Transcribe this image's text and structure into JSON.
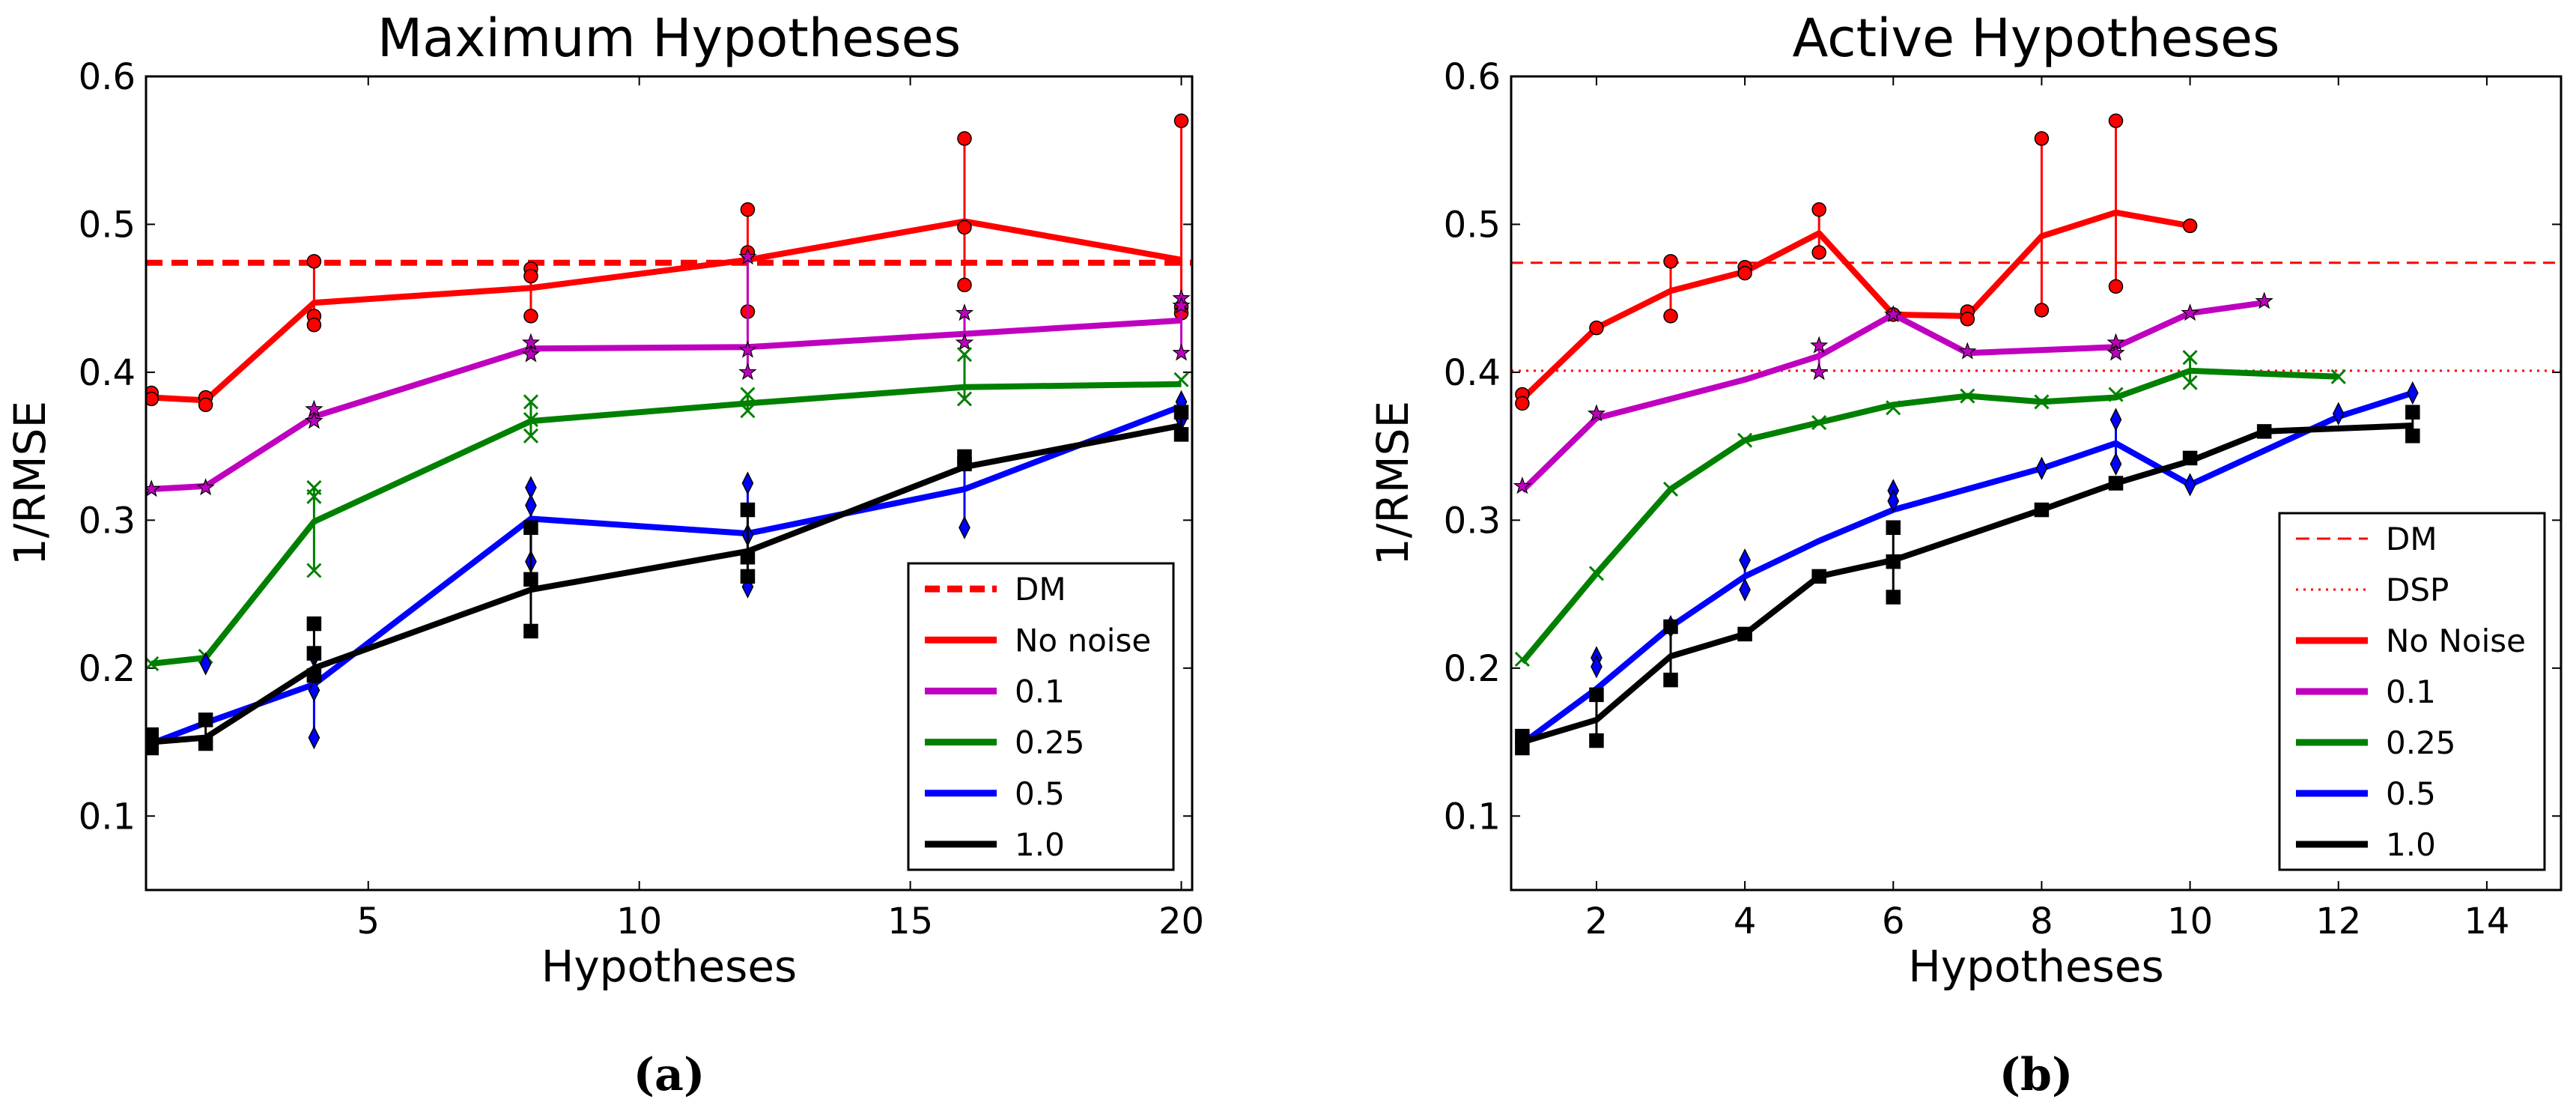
{
  "colors": {
    "red": "#ff0000",
    "magenta": "#bf00bf",
    "green": "#008000",
    "blue": "#0000ff",
    "black": "#000000"
  },
  "chart_data": [
    {
      "type": "line",
      "title": "Maximum Hypotheses",
      "xlabel": "Hypotheses",
      "ylabel": "1/RMSE",
      "caption": "(a)",
      "xlim": [
        0.9,
        20.2
      ],
      "ylim": [
        0.05,
        0.6
      ],
      "xticks": [
        5,
        10,
        15,
        20
      ],
      "xtick_labels": [
        "5",
        "10",
        "15",
        "20"
      ],
      "yticks": [
        0.1,
        0.2,
        0.3,
        0.4,
        0.5,
        0.6
      ],
      "ytick_labels": [
        "0.1",
        "0.2",
        "0.3",
        "0.4",
        "0.5",
        "0.6"
      ],
      "legend_position": "lower-right",
      "reference_lines": [
        {
          "name": "DM",
          "y": 0.474,
          "color": "#ff0000",
          "style": "dashed"
        }
      ],
      "legend": [
        {
          "label": "DM",
          "color": "#ff0000",
          "style": "dashed"
        },
        {
          "label": "No noise",
          "color": "#ff0000",
          "style": "solid"
        },
        {
          "label": "0.1",
          "color": "#bf00bf",
          "style": "solid"
        },
        {
          "label": "0.25",
          "color": "#008000",
          "style": "solid"
        },
        {
          "label": "0.5",
          "color": "#0000ff",
          "style": "solid"
        },
        {
          "label": "1.0",
          "color": "#000000",
          "style": "solid"
        }
      ],
      "series": [
        {
          "name": "No noise",
          "color": "#ff0000",
          "marker": "circle",
          "x": [
            1,
            2,
            4,
            8,
            12,
            16,
            20
          ],
          "y": [
            0.383,
            0.381,
            0.447,
            0.457,
            0.476,
            0.502,
            0.476
          ],
          "points": [
            [
              1,
              0.386
            ],
            [
              1,
              0.382
            ],
            [
              2,
              0.383
            ],
            [
              2,
              0.378
            ],
            [
              4,
              0.475
            ],
            [
              4,
              0.438
            ],
            [
              4,
              0.432
            ],
            [
              8,
              0.47
            ],
            [
              8,
              0.465
            ],
            [
              8,
              0.438
            ],
            [
              12,
              0.51
            ],
            [
              12,
              0.481
            ],
            [
              12,
              0.441
            ],
            [
              16,
              0.558
            ],
            [
              16,
              0.498
            ],
            [
              16,
              0.459
            ],
            [
              20,
              0.57
            ],
            [
              20,
              0.444
            ],
            [
              20,
              0.44
            ]
          ]
        },
        {
          "name": "0.1",
          "color": "#bf00bf",
          "marker": "star",
          "x": [
            1,
            2,
            4,
            8,
            12,
            16,
            20
          ],
          "y": [
            0.321,
            0.323,
            0.37,
            0.416,
            0.417,
            0.426,
            0.435
          ],
          "points": [
            [
              1,
              0.321
            ],
            [
              2,
              0.322
            ],
            [
              4,
              0.375
            ],
            [
              4,
              0.367
            ],
            [
              8,
              0.42
            ],
            [
              8,
              0.412
            ],
            [
              12,
              0.478
            ],
            [
              12,
              0.415
            ],
            [
              12,
              0.4
            ],
            [
              16,
              0.44
            ],
            [
              16,
              0.42
            ],
            [
              20,
              0.45
            ],
            [
              20,
              0.445
            ],
            [
              20,
              0.413
            ]
          ]
        },
        {
          "name": "0.25",
          "color": "#008000",
          "marker": "x",
          "x": [
            1,
            2,
            4,
            8,
            12,
            16,
            20
          ],
          "y": [
            0.203,
            0.207,
            0.299,
            0.367,
            0.379,
            0.39,
            0.392
          ],
          "points": [
            [
              1,
              0.203
            ],
            [
              2,
              0.208
            ],
            [
              4,
              0.322
            ],
            [
              4,
              0.316
            ],
            [
              4,
              0.266
            ],
            [
              8,
              0.38
            ],
            [
              8,
              0.368
            ],
            [
              8,
              0.357
            ],
            [
              12,
              0.385
            ],
            [
              12,
              0.374
            ],
            [
              16,
              0.412
            ],
            [
              16,
              0.382
            ],
            [
              20,
              0.395
            ]
          ]
        },
        {
          "name": "0.5",
          "color": "#0000ff",
          "marker": "diamond",
          "x": [
            1,
            2,
            4,
            8,
            12,
            16,
            20
          ],
          "y": [
            0.149,
            0.163,
            0.189,
            0.301,
            0.291,
            0.321,
            0.377
          ],
          "points": [
            [
              1,
              0.149
            ],
            [
              2,
              0.203
            ],
            [
              4,
              0.208
            ],
            [
              4,
              0.185
            ],
            [
              4,
              0.153
            ],
            [
              8,
              0.322
            ],
            [
              8,
              0.31
            ],
            [
              8,
              0.272
            ],
            [
              12,
              0.325
            ],
            [
              12,
              0.29
            ],
            [
              12,
              0.255
            ],
            [
              16,
              0.34
            ],
            [
              16,
              0.295
            ],
            [
              20,
              0.38
            ],
            [
              20,
              0.368
            ]
          ]
        },
        {
          "name": "1.0",
          "color": "#000000",
          "marker": "square",
          "x": [
            1,
            2,
            4,
            8,
            12,
            16,
            20
          ],
          "y": [
            0.15,
            0.153,
            0.2,
            0.253,
            0.279,
            0.336,
            0.364
          ],
          "points": [
            [
              1,
              0.155
            ],
            [
              1,
              0.146
            ],
            [
              2,
              0.165
            ],
            [
              2,
              0.149
            ],
            [
              4,
              0.23
            ],
            [
              4,
              0.21
            ],
            [
              4,
              0.195
            ],
            [
              8,
              0.295
            ],
            [
              8,
              0.26
            ],
            [
              8,
              0.225
            ],
            [
              12,
              0.307
            ],
            [
              12,
              0.275
            ],
            [
              12,
              0.262
            ],
            [
              16,
              0.343
            ],
            [
              16,
              0.338
            ],
            [
              20,
              0.373
            ],
            [
              20,
              0.358
            ]
          ]
        }
      ]
    },
    {
      "type": "line",
      "title": "Active Hypotheses",
      "xlabel": "Hypotheses",
      "ylabel": "1/RMSE",
      "caption": "(b)",
      "xlim": [
        0.85,
        15.0
      ],
      "ylim": [
        0.05,
        0.6
      ],
      "xticks": [
        2,
        4,
        6,
        8,
        10,
        12,
        14
      ],
      "xtick_labels": [
        "2",
        "4",
        "6",
        "8",
        "10",
        "12",
        "14"
      ],
      "yticks": [
        0.1,
        0.2,
        0.3,
        0.4,
        0.5,
        0.6
      ],
      "ytick_labels": [
        "0.1",
        "0.2",
        "0.3",
        "0.4",
        "0.5",
        "0.6"
      ],
      "legend_position": "lower-right",
      "reference_lines": [
        {
          "name": "DM",
          "y": 0.474,
          "color": "#ff0000",
          "style": "dashed"
        },
        {
          "name": "DSP",
          "y": 0.401,
          "color": "#ff0000",
          "style": "dotted"
        }
      ],
      "legend": [
        {
          "label": "DM",
          "color": "#ff0000",
          "style": "dashed"
        },
        {
          "label": "DSP",
          "color": "#ff0000",
          "style": "dotted"
        },
        {
          "label": "No Noise",
          "color": "#ff0000",
          "style": "solid"
        },
        {
          "label": "0.1",
          "color": "#bf00bf",
          "style": "solid"
        },
        {
          "label": "0.25",
          "color": "#008000",
          "style": "solid"
        },
        {
          "label": "0.5",
          "color": "#0000ff",
          "style": "solid"
        },
        {
          "label": "1.0",
          "color": "#000000",
          "style": "solid"
        }
      ],
      "series": [
        {
          "name": "No Noise",
          "color": "#ff0000",
          "marker": "circle",
          "x": [
            1,
            2,
            3,
            4,
            5,
            6,
            7,
            8,
            9,
            10
          ],
          "y": [
            0.382,
            0.43,
            0.455,
            0.468,
            0.494,
            0.439,
            0.438,
            0.492,
            0.508,
            0.499
          ],
          "points": [
            [
              1,
              0.385
            ],
            [
              1,
              0.379
            ],
            [
              2,
              0.43
            ],
            [
              3,
              0.475
            ],
            [
              3,
              0.438
            ],
            [
              4,
              0.471
            ],
            [
              4,
              0.467
            ],
            [
              5,
              0.51
            ],
            [
              5,
              0.481
            ],
            [
              6,
              0.439
            ],
            [
              7,
              0.441
            ],
            [
              7,
              0.436
            ],
            [
              8,
              0.558
            ],
            [
              8,
              0.442
            ],
            [
              9,
              0.57
            ],
            [
              9,
              0.458
            ],
            [
              10,
              0.499
            ]
          ]
        },
        {
          "name": "0.1",
          "color": "#bf00bf",
          "marker": "star",
          "x": [
            1,
            2,
            4,
            5,
            6,
            7,
            9,
            10,
            11
          ],
          "y": [
            0.32,
            0.369,
            0.395,
            0.411,
            0.439,
            0.413,
            0.417,
            0.44,
            0.447
          ],
          "points": [
            [
              1,
              0.323
            ],
            [
              2,
              0.372
            ],
            [
              5,
              0.418
            ],
            [
              5,
              0.4
            ],
            [
              6,
              0.439
            ],
            [
              7,
              0.414
            ],
            [
              9,
              0.42
            ],
            [
              9,
              0.413
            ],
            [
              10,
              0.44
            ],
            [
              11,
              0.448
            ]
          ]
        },
        {
          "name": "0.25",
          "color": "#008000",
          "marker": "x",
          "x": [
            1,
            2,
            3,
            4,
            5,
            6,
            7,
            8,
            9,
            10,
            11,
            12
          ],
          "y": [
            0.204,
            0.264,
            0.321,
            0.354,
            0.366,
            0.378,
            0.384,
            0.38,
            0.383,
            0.401,
            0.399,
            0.397
          ],
          "points": [
            [
              1,
              0.206
            ],
            [
              2,
              0.264
            ],
            [
              3,
              0.321
            ],
            [
              4,
              0.354
            ],
            [
              5,
              0.366
            ],
            [
              6,
              0.376
            ],
            [
              7,
              0.384
            ],
            [
              8,
              0.38
            ],
            [
              9,
              0.385
            ],
            [
              10,
              0.41
            ],
            [
              10,
              0.393
            ],
            [
              12,
              0.397
            ]
          ]
        },
        {
          "name": "0.5",
          "color": "#0000ff",
          "marker": "diamond",
          "x": [
            1,
            2,
            3,
            4,
            5,
            6,
            8,
            9,
            10,
            12,
            13
          ],
          "y": [
            0.149,
            0.186,
            0.228,
            0.262,
            0.286,
            0.307,
            0.335,
            0.352,
            0.324,
            0.37,
            0.386
          ],
          "points": [
            [
              1,
              0.149
            ],
            [
              2,
              0.207
            ],
            [
              2,
              0.201
            ],
            [
              3,
              0.228
            ],
            [
              4,
              0.273
            ],
            [
              4,
              0.253
            ],
            [
              6,
              0.32
            ],
            [
              6,
              0.313
            ],
            [
              8,
              0.335
            ],
            [
              9,
              0.368
            ],
            [
              9,
              0.338
            ],
            [
              10,
              0.324
            ],
            [
              12,
              0.372
            ],
            [
              13,
              0.386
            ]
          ]
        },
        {
          "name": "1.0",
          "color": "#000000",
          "marker": "square",
          "x": [
            1,
            2,
            3,
            4,
            5,
            6,
            8,
            9,
            10,
            11,
            13
          ],
          "y": [
            0.15,
            0.165,
            0.208,
            0.223,
            0.262,
            0.273,
            0.307,
            0.325,
            0.34,
            0.36,
            0.364
          ],
          "points": [
            [
              1,
              0.154
            ],
            [
              1,
              0.146
            ],
            [
              2,
              0.182
            ],
            [
              2,
              0.151
            ],
            [
              3,
              0.228
            ],
            [
              3,
              0.192
            ],
            [
              4,
              0.223
            ],
            [
              5,
              0.262
            ],
            [
              6,
              0.295
            ],
            [
              6,
              0.272
            ],
            [
              6,
              0.248
            ],
            [
              8,
              0.307
            ],
            [
              9,
              0.325
            ],
            [
              10,
              0.342
            ],
            [
              11,
              0.36
            ],
            [
              13,
              0.373
            ],
            [
              13,
              0.357
            ]
          ]
        }
      ]
    }
  ]
}
